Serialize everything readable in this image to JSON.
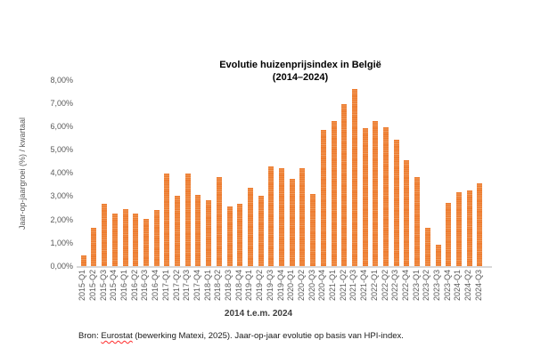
{
  "chart_data": {
    "type": "bar",
    "title_line1": "Evolutie huizenprijsindex in België",
    "title_line2": "(2014–2024)",
    "ylabel": "Jaar-op-jaargroei (%) / kwartaal",
    "xlabel": "2014 t.e.m. 2024",
    "ylim": [
      0,
      8
    ],
    "ytick_labels": [
      "0,00%",
      "1,00%",
      "2,00%",
      "3,00%",
      "4,00%",
      "5,00%",
      "6,00%",
      "7,00%",
      "8,00%"
    ],
    "grid": false,
    "legend": false,
    "bar_color": "#ED7D31",
    "bar_stripe_color": "#F19B5C",
    "baseline_color": "#d9d9d9",
    "categories": [
      "2015-Q1",
      "2015-Q2",
      "2015-Q3",
      "2015-Q4",
      "2016-Q1",
      "2016-Q2",
      "2016-Q3",
      "2016-Q4",
      "2017-Q1",
      "2017-Q2",
      "2017-Q3",
      "2017-Q4",
      "2018-Q1",
      "2018-Q2",
      "2018-Q3",
      "2018-Q4",
      "2019-Q1",
      "2019-Q2",
      "2019-Q3",
      "2019-Q4",
      "2020-Q1",
      "2020-Q2",
      "2020-Q3",
      "2020-Q4",
      "2021-Q1",
      "2021-Q2",
      "2021-Q3",
      "2021-Q4",
      "2022-Q1",
      "2022-Q2",
      "2022-Q3",
      "2022-Q4",
      "2023-Q1",
      "2023-Q2",
      "2023-Q3",
      "2023-Q4",
      "2024-Q1",
      "2024-Q2",
      "2024-Q3"
    ],
    "values": [
      0.5,
      1.7,
      2.7,
      2.3,
      2.5,
      2.3,
      2.05,
      2.45,
      4.0,
      3.05,
      4.0,
      3.1,
      2.85,
      3.85,
      2.6,
      2.7,
      3.4,
      3.05,
      4.3,
      4.25,
      3.8,
      4.25,
      3.15,
      5.9,
      6.25,
      7.0,
      7.65,
      5.95,
      6.25,
      6.0,
      5.45,
      4.6,
      3.85,
      1.7,
      0.95,
      2.75,
      3.2,
      3.3,
      3.6
    ]
  },
  "footer": {
    "prefix": "Bron: ",
    "source_name": "Eurostat",
    "rest": " (bewerking Matexi, 2025). Jaar-op-jaar evolutie op basis van HPI-index."
  }
}
